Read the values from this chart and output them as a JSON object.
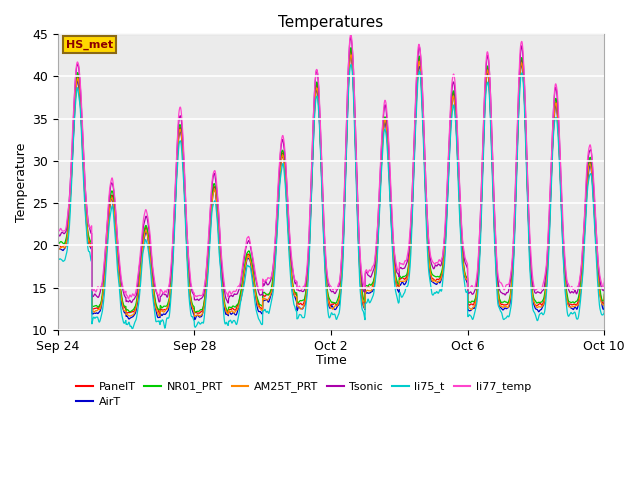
{
  "title": "Temperatures",
  "xlabel": "Time",
  "ylabel": "Temperature",
  "ylim": [
    10,
    45
  ],
  "yticks": [
    10,
    15,
    20,
    25,
    30,
    35,
    40,
    45
  ],
  "annotation_text": "HS_met",
  "annotation_box_color": "#FFD700",
  "annotation_text_color": "#8B0000",
  "annotation_box_edge": "#8B6914",
  "background_color": "#FFFFFF",
  "plot_bg_color": "#EBEBEB",
  "series": [
    {
      "name": "PanelT",
      "color": "#FF0000"
    },
    {
      "name": "AirT",
      "color": "#0000CC"
    },
    {
      "name": "NR01_PRT",
      "color": "#00CC00"
    },
    {
      "name": "AM25T_PRT",
      "color": "#FF8800"
    },
    {
      "name": "Tsonic",
      "color": "#AA00AA"
    },
    {
      "name": "li75_t",
      "color": "#00CCCC"
    },
    {
      "name": "li77_temp",
      "color": "#FF44CC"
    }
  ],
  "x_tick_labels": [
    "Sep 24",
    "Sep 28",
    "Oct 2",
    "Oct 6",
    "Oct 10"
  ],
  "x_tick_positions": [
    0,
    4,
    8,
    12,
    16
  ],
  "n_days": 17,
  "pts_per_day": 144,
  "grid_color": "#FFFFFF",
  "title_fontsize": 11,
  "axis_label_fontsize": 9,
  "tick_fontsize": 9,
  "legend_fontsize": 8,
  "linewidth": 0.9
}
